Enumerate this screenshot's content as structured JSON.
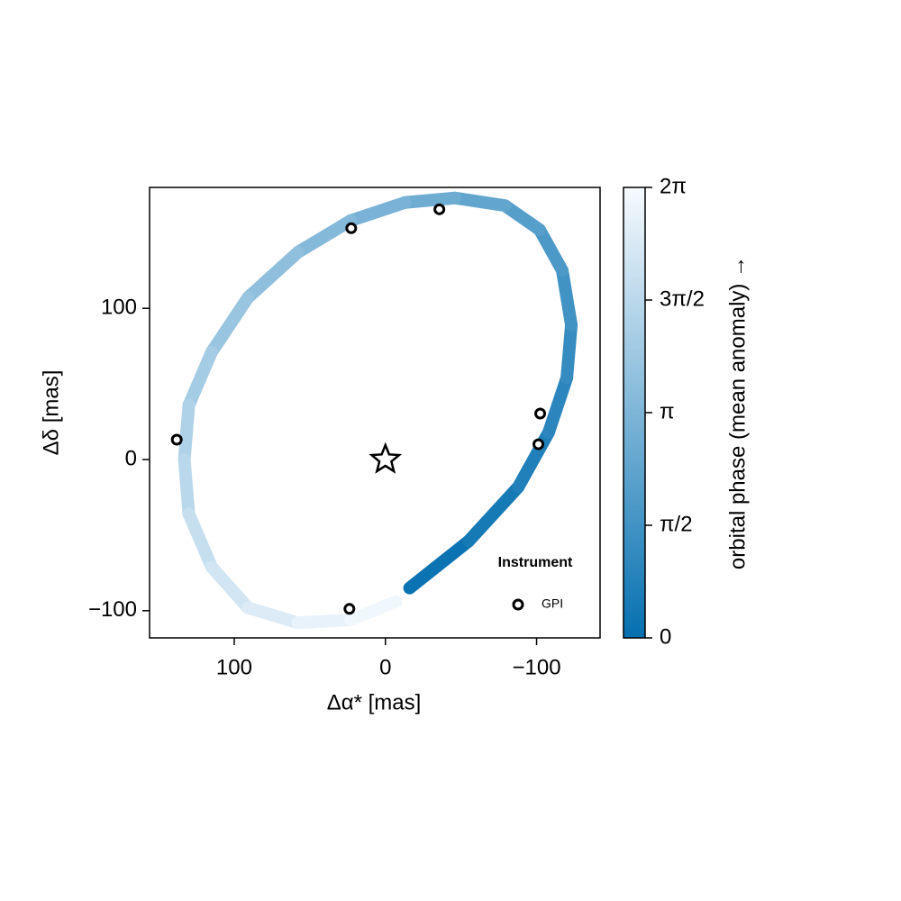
{
  "chart_data": {
    "type": "orbit",
    "xlabel": "Δα* [mas]",
    "ylabel": "Δδ [mas]",
    "xlim": [
      156,
      -142
    ],
    "ylim": [
      -118,
      180
    ],
    "xticks": [
      100,
      0,
      {
        "value": -100,
        "label": "−100"
      }
    ],
    "yticks": [
      {
        "value": -100,
        "label": "−100"
      },
      0,
      100
    ],
    "orbit": {
      "x": [
        -16,
        -55,
        -88,
        -108,
        -120,
        -123,
        -117,
        -102,
        -79,
        -46,
        -13,
        23,
        58,
        91,
        115,
        130,
        133,
        130,
        115,
        91,
        58,
        23,
        -7
      ],
      "y": [
        -85,
        -54,
        -18,
        18,
        54,
        89,
        125,
        152,
        168,
        173,
        170,
        158,
        137,
        107,
        71,
        36,
        0,
        -36,
        -71,
        -98,
        -108,
        -106,
        -94
      ],
      "phase": [
        0,
        0.29,
        0.57,
        0.86,
        1.14,
        1.43,
        1.71,
        2.0,
        2.28,
        2.57,
        2.86,
        3.14,
        3.43,
        3.71,
        4.0,
        4.28,
        4.57,
        4.85,
        5.14,
        5.43,
        5.71,
        6.0,
        6.28
      ]
    },
    "star": {
      "x": 0,
      "y": 0
    },
    "series": [
      {
        "name": "GPI",
        "color": "#ffffff",
        "x": [
          138,
          22.6,
          -35.7,
          -102.4,
          -101.2,
          23.8
        ],
        "values": [
          13.1,
          153,
          165.5,
          30.4,
          10.1,
          -98.8
        ]
      }
    ],
    "legend_title": "Instrument",
    "colorbar": {
      "label": "orbital phase (mean anomaly) →",
      "colors": [
        "#0570b0",
        "#f7fbff"
      ],
      "lim": [
        0,
        6.2832
      ],
      "ticks": [
        {
          "value": 0,
          "label": "0"
        },
        {
          "value": 1.5708,
          "label": "π/2"
        },
        {
          "value": 3.1416,
          "label": "π"
        },
        {
          "value": 4.7124,
          "label": "3π/2"
        },
        {
          "value": 6.2832,
          "label": "2π"
        }
      ]
    }
  }
}
